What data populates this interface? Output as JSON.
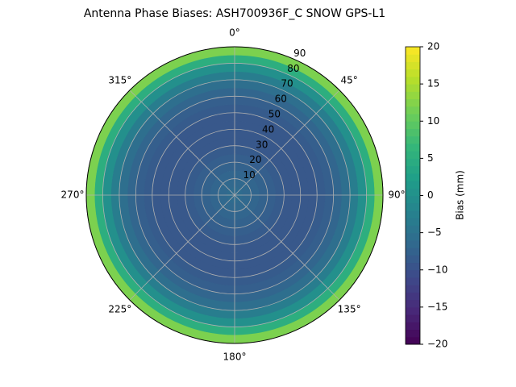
{
  "chart_data": {
    "type": "polar_heatmap",
    "title": "Antenna Phase Biases: ASH700936F_C    SNOW GPS-L1",
    "r_edges": [
      0,
      5,
      10,
      15,
      20,
      25,
      30,
      35,
      40,
      45,
      50,
      55,
      60,
      65,
      70,
      75,
      80,
      85,
      90
    ],
    "values": [
      -6,
      -6.5,
      -7,
      -7.5,
      -8,
      -8.5,
      -9,
      -9,
      -9,
      -9,
      -8.5,
      -8,
      -7,
      -5.5,
      -3,
      0,
      5,
      12
    ],
    "rlim": [
      0,
      90
    ],
    "rticks": [
      10,
      20,
      30,
      40,
      50,
      60,
      70,
      80,
      90
    ],
    "theta_ticks": [
      {
        "value": 0,
        "label": "0°"
      },
      {
        "value": 45,
        "label": "45°"
      },
      {
        "value": 90,
        "label": "90°"
      },
      {
        "value": 135,
        "label": "135°"
      },
      {
        "value": 180,
        "label": "180°"
      },
      {
        "value": 225,
        "label": "225°"
      },
      {
        "value": 270,
        "label": "270°"
      },
      {
        "value": 315,
        "label": "315°"
      }
    ],
    "grid": true,
    "colormap": "viridis",
    "colorbar_label": "Bias (mm)",
    "clim": [
      -20,
      20
    ],
    "cticks": [
      {
        "value": -20,
        "label": "−20"
      },
      {
        "value": -15,
        "label": "−15"
      },
      {
        "value": -10,
        "label": "−10"
      },
      {
        "value": -5,
        "label": "−5"
      },
      0,
      5,
      10,
      15,
      20
    ]
  }
}
